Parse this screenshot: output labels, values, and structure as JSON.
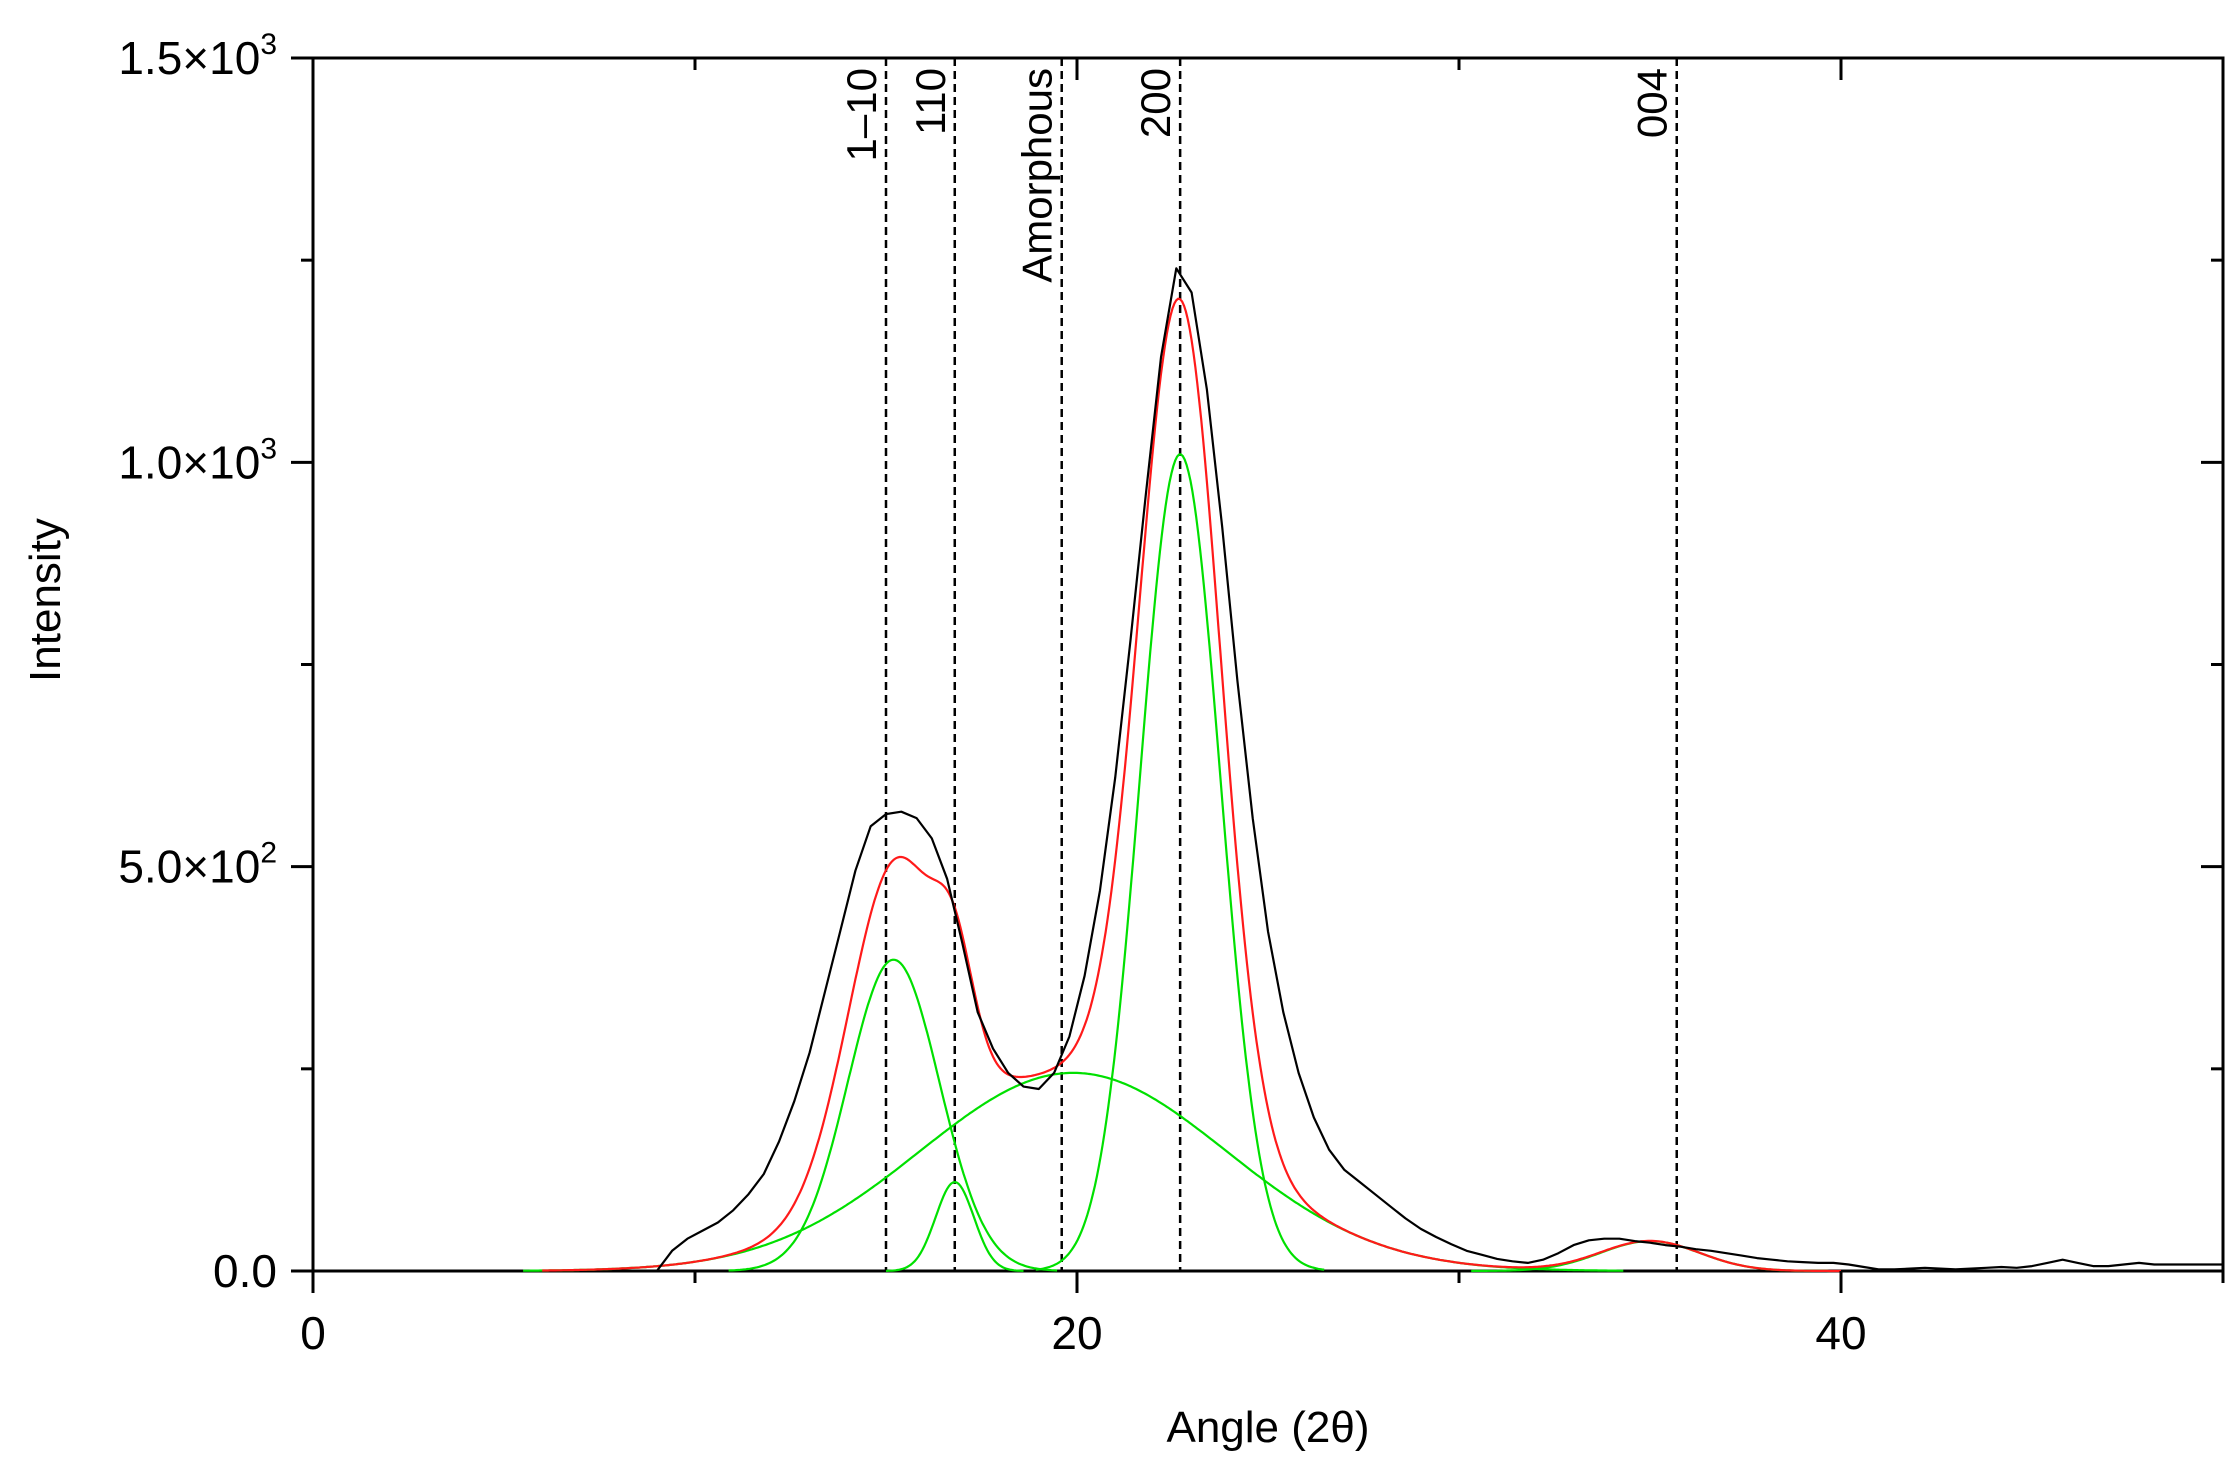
{
  "chart_data": {
    "type": "line",
    "xlabel": "Angle (2θ)",
    "ylabel": "Intensity",
    "xlim": [
      0,
      50
    ],
    "ylim": [
      0,
      1500
    ],
    "grid": false,
    "x_ticks": [
      {
        "value": 0,
        "label": "0"
      },
      {
        "value": 20,
        "label": "20"
      },
      {
        "value": 40,
        "label": "40"
      }
    ],
    "y_ticks": [
      {
        "value": 0,
        "label": "0.0"
      },
      {
        "value": 500,
        "label": "5.0×10",
        "exp": "2"
      },
      {
        "value": 1000,
        "label": "1.0×10",
        "exp": "3"
      },
      {
        "value": 1500,
        "label": "1.5×10",
        "exp": "3"
      }
    ],
    "reference_lines": [
      {
        "x": 15.0,
        "label": "1–10"
      },
      {
        "x": 16.8,
        "label": "110"
      },
      {
        "x": 19.6,
        "label": "Amorphous"
      },
      {
        "x": 22.7,
        "label": "200"
      },
      {
        "x": 35.7,
        "label": "004"
      }
    ],
    "components": [
      {
        "center": 15.2,
        "amplitude": 385,
        "sigma": 1.2
      },
      {
        "center": 16.8,
        "amplitude": 110,
        "sigma": 0.5
      },
      {
        "center": 22.7,
        "amplitude": 1010,
        "sigma": 1.05
      },
      {
        "center": 19.9,
        "amplitude": 245,
        "sigma": 4.0
      },
      {
        "center": 35.0,
        "amplitude": 37,
        "sigma": 1.3
      }
    ],
    "series": [
      {
        "color": "#000000",
        "x": [
          9.0,
          9.4,
          9.8,
          10.2,
          10.6,
          11.0,
          11.4,
          11.8,
          12.2,
          12.6,
          13.0,
          13.4,
          13.8,
          14.2,
          14.6,
          15.0,
          15.4,
          15.8,
          16.2,
          16.6,
          17.0,
          17.4,
          17.8,
          18.2,
          18.6,
          19.0,
          19.4,
          19.8,
          20.2,
          20.6,
          21.0,
          21.4,
          21.8,
          22.2,
          22.6,
          23.0,
          23.4,
          23.8,
          24.2,
          24.6,
          25.0,
          25.4,
          25.8,
          26.2,
          26.6,
          27.0,
          27.4,
          27.8,
          28.2,
          28.6,
          29.0,
          29.4,
          29.8,
          30.2,
          30.6,
          31.0,
          31.4,
          31.8,
          32.2,
          32.6,
          33.0,
          33.4,
          33.8,
          34.2,
          34.6,
          35.0,
          35.4,
          35.8,
          36.2,
          36.6,
          37.0,
          37.4,
          37.8,
          38.2,
          38.6,
          39.0,
          39.4,
          39.8,
          40.2,
          40.6,
          41.0,
          41.4,
          41.8,
          42.2,
          42.6,
          43.0,
          43.4,
          43.8,
          44.2,
          44.6,
          45.0,
          45.4,
          45.8,
          46.2,
          46.6,
          47.0,
          47.4,
          47.8,
          48.2,
          48.6,
          49.0,
          49.4,
          49.8,
          50.0
        ],
        "y": [
          0,
          25,
          40,
          50,
          60,
          75,
          95,
          120,
          160,
          210,
          270,
          345,
          420,
          495,
          550,
          565,
          568,
          560,
          535,
          485,
          405,
          320,
          275,
          245,
          228,
          225,
          245,
          290,
          365,
          470,
          610,
          780,
          960,
          1130,
          1240,
          1210,
          1090,
          920,
          730,
          560,
          420,
          320,
          245,
          190,
          150,
          125,
          110,
          95,
          80,
          65,
          52,
          42,
          33,
          25,
          20,
          15,
          12,
          10,
          14,
          22,
          32,
          38,
          40,
          40,
          37,
          35,
          32,
          30,
          27,
          25,
          22,
          19,
          16,
          14,
          12,
          11,
          10,
          10,
          8,
          5,
          2,
          2,
          3,
          4,
          3,
          2,
          3,
          4,
          5,
          4,
          6,
          10,
          14,
          10,
          6,
          6,
          8,
          10,
          8,
          8,
          8,
          8,
          8,
          8
        ]
      }
    ]
  }
}
